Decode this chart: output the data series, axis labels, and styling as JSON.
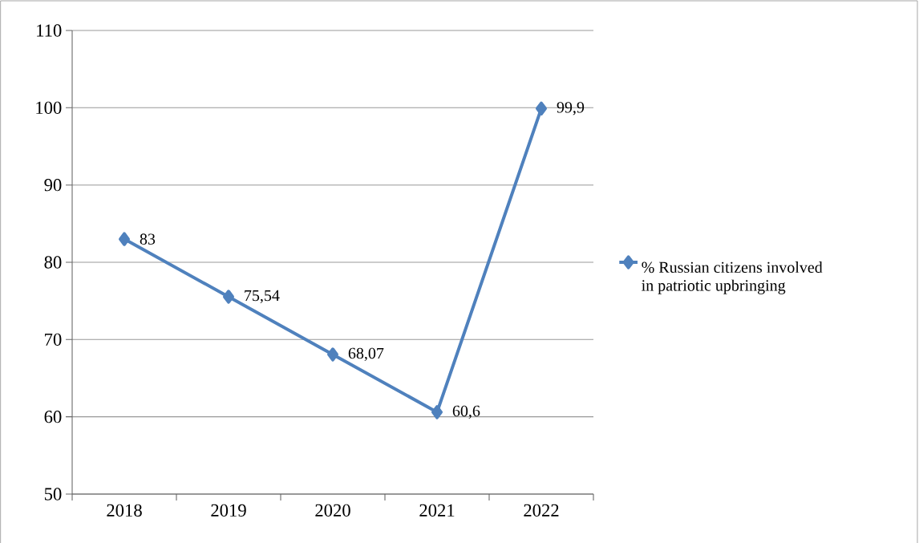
{
  "chart_data": {
    "type": "line",
    "categories": [
      "2018",
      "2019",
      "2020",
      "2021",
      "2022"
    ],
    "series": [
      {
        "name": "% Russian citizens involved in patriotic upbringing",
        "color": "#4f81bd",
        "values": [
          83,
          75.54,
          68.07,
          60.6,
          99.9
        ],
        "value_labels": [
          "83",
          "75,54",
          "68,07",
          "60,6",
          "99,9"
        ]
      }
    ],
    "ylim": [
      50,
      110
    ],
    "yticks": [
      50,
      60,
      70,
      80,
      90,
      100,
      110
    ],
    "grid": "y",
    "legend": "right",
    "marker": "diamond",
    "line_style": "solid"
  }
}
